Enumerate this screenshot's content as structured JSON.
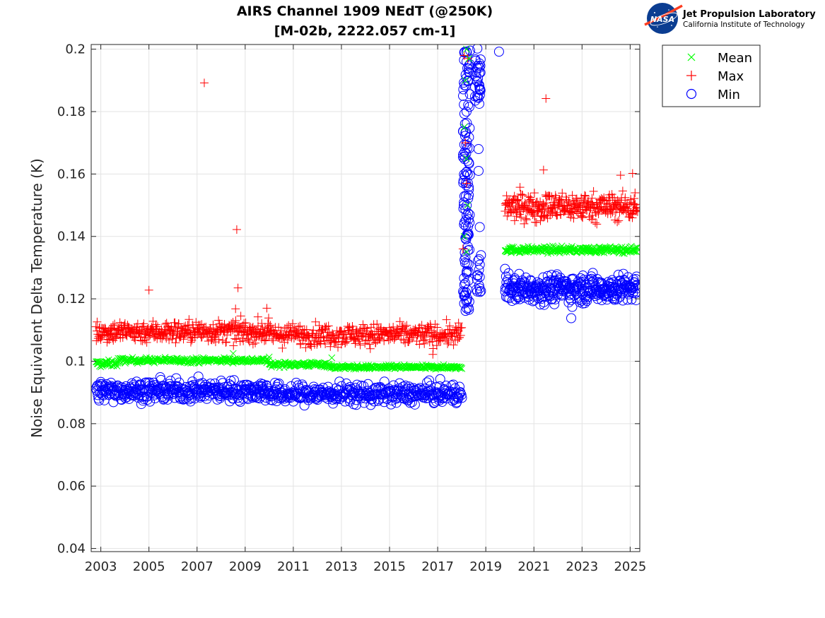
{
  "chart_data": {
    "type": "scatter",
    "title": "AIRS Channel 1909 NEdT (@250K)",
    "subtitle": "[M-02b, 2222.057 cm-1]",
    "xlabel": "",
    "ylabel": "Noise Equivalent Delta Temperature (K)",
    "xlim": [
      2002.6,
      2025.4
    ],
    "ylim": [
      0.039,
      0.2015
    ],
    "x_ticks": [
      2003,
      2005,
      2007,
      2009,
      2011,
      2013,
      2015,
      2017,
      2019,
      2021,
      2023,
      2025
    ],
    "x_tick_labels": [
      "2003",
      "2005",
      "2007",
      "2009",
      "2011",
      "2013",
      "2015",
      "2017",
      "2019",
      "2021",
      "2023",
      "2025"
    ],
    "y_ticks": [
      0.04,
      0.06,
      0.08,
      0.1,
      0.12,
      0.14,
      0.16,
      0.18,
      0.2
    ],
    "y_tick_labels": [
      "0.04",
      "0.06",
      "0.08",
      "0.1",
      "0.12",
      "0.14",
      "0.16",
      "0.18",
      "0.2"
    ],
    "grid": true,
    "legend_position": "top-right-outside",
    "series": [
      {
        "name": "Mean",
        "marker": "x",
        "color": "#00ff00",
        "segments": [
          {
            "x_start": 2002.8,
            "x_end": 2003.7,
            "level": 0.0993,
            "spread": 0.0005,
            "count": 40
          },
          {
            "x_start": 2003.7,
            "x_end": 2010.0,
            "level": 0.1003,
            "spread": 0.0004,
            "count": 250
          },
          {
            "x_start": 2010.0,
            "x_end": 2012.5,
            "level": 0.099,
            "spread": 0.0004,
            "count": 100
          },
          {
            "x_start": 2012.5,
            "x_end": 2018.0,
            "level": 0.0981,
            "spread": 0.0003,
            "count": 220
          },
          {
            "x_start": 2019.8,
            "x_end": 2025.3,
            "level": 0.1357,
            "spread": 0.0005,
            "count": 240
          }
        ],
        "outliers": [
          [
            2008.5,
            0.1025
          ],
          [
            2012.6,
            0.1011
          ],
          [
            2003.0,
            0.0982
          ],
          [
            2018.1,
            0.175
          ],
          [
            2018.15,
            0.19
          ],
          [
            2018.2,
            0.2
          ],
          [
            2018.2,
            0.165
          ],
          [
            2018.25,
            0.15
          ],
          [
            2018.2,
            0.135
          ],
          [
            2018.1,
            0.14
          ],
          [
            2018.3,
            0.197
          ]
        ]
      },
      {
        "name": "Max",
        "marker": "+",
        "color": "#ff0000",
        "segments": [
          {
            "x_start": 2002.8,
            "x_end": 2010.0,
            "level": 0.1095,
            "spread": 0.0017,
            "count": 380
          },
          {
            "x_start": 2010.0,
            "x_end": 2018.0,
            "level": 0.1085,
            "spread": 0.0017,
            "count": 380
          },
          {
            "x_start": 2019.8,
            "x_end": 2025.3,
            "level": 0.1495,
            "spread": 0.0022,
            "count": 330
          }
        ],
        "outliers": [
          [
            2007.3,
            0.1892
          ],
          [
            2008.65,
            0.1422
          ],
          [
            2005.0,
            0.1228
          ],
          [
            2008.7,
            0.1235
          ],
          [
            2008.6,
            0.1168
          ],
          [
            2009.9,
            0.117
          ],
          [
            2016.8,
            0.1022
          ],
          [
            2014.2,
            0.104
          ],
          [
            2021.4,
            0.1613
          ],
          [
            2021.5,
            0.1842
          ],
          [
            2024.6,
            0.1596
          ],
          [
            2025.1,
            0.1602
          ],
          [
            2018.1,
            0.198
          ],
          [
            2018.25,
            0.197
          ],
          [
            2018.15,
            0.17
          ],
          [
            2018.2,
            0.157
          ],
          [
            2018.05,
            0.136
          ]
        ]
      },
      {
        "name": "Min",
        "marker": "o",
        "color": "#0000ff",
        "segments": [
          {
            "x_start": 2002.8,
            "x_end": 2010.0,
            "level": 0.0905,
            "spread": 0.0016,
            "count": 360
          },
          {
            "x_start": 2010.0,
            "x_end": 2018.0,
            "level": 0.0895,
            "spread": 0.0016,
            "count": 360
          },
          {
            "x_start": 2019.8,
            "x_end": 2025.3,
            "level": 0.1233,
            "spread": 0.0022,
            "count": 330
          }
        ],
        "outliers": [
          [
            2019.55,
            0.1992
          ],
          [
            2018.65,
            0.2002
          ],
          [
            2022.55,
            0.1138
          ],
          [
            2018.1,
            0.1185
          ],
          [
            2018.2,
            0.196
          ],
          [
            2018.2,
            0.18
          ],
          [
            2018.25,
            0.16
          ],
          [
            2018.2,
            0.14
          ],
          [
            2018.15,
            0.125
          ],
          [
            2018.7,
            0.168
          ],
          [
            2018.7,
            0.161
          ],
          [
            2018.75,
            0.143
          ],
          [
            2018.8,
            0.134
          ],
          [
            2018.75,
            0.127
          ],
          [
            2018.8,
            0.1225
          ],
          [
            2019.8,
            0.1296
          ]
        ],
        "clusters": [
          {
            "x_start": 2018.05,
            "x_end": 2018.35,
            "y_min": 0.116,
            "y_max": 0.2,
            "count": 120
          },
          {
            "x_start": 2018.55,
            "x_end": 2018.8,
            "y_min": 0.181,
            "y_max": 0.198,
            "count": 30
          },
          {
            "x_start": 2018.6,
            "x_end": 2018.8,
            "y_min": 0.122,
            "y_max": 0.134,
            "count": 12
          }
        ]
      }
    ]
  },
  "logo": {
    "name": "Jet Propulsion Laboratory",
    "subtitle": "California Institute of Technology",
    "badge": "NASA"
  }
}
